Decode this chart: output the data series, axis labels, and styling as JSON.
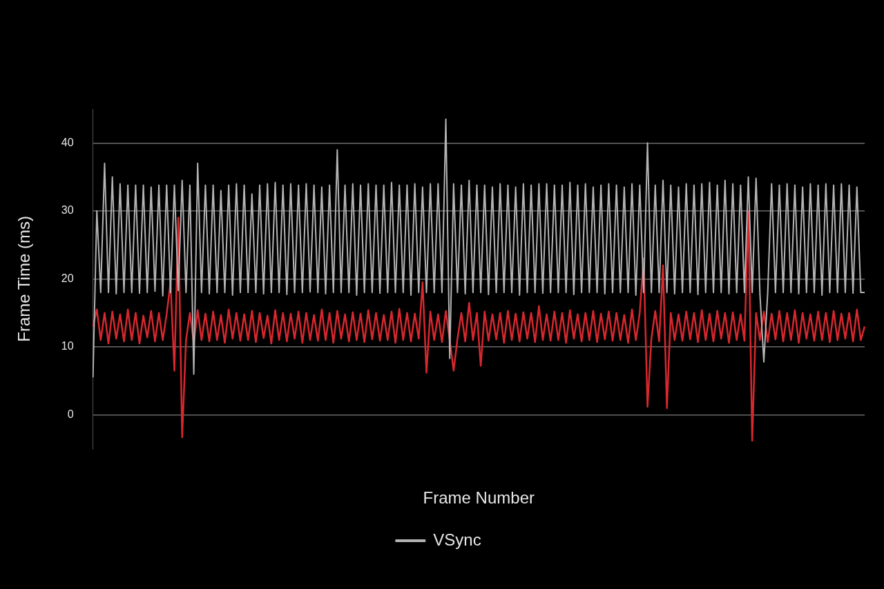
{
  "chart_data": {
    "type": "line",
    "xlabel": "Frame Number",
    "ylabel": "Frame Time (ms)",
    "ylim": [
      -5,
      45
    ],
    "yticks": [
      0,
      10,
      20,
      30,
      40
    ],
    "grid": "y",
    "legend": "bottom",
    "marker": "none",
    "line_style": "solid",
    "categories": [
      null,
      null,
      null,
      null,
      null,
      null,
      null,
      null,
      null,
      null,
      null,
      null,
      null,
      null,
      null,
      null,
      null,
      null,
      null,
      null,
      null,
      null,
      null,
      null,
      null,
      null,
      null,
      null,
      null,
      null,
      null,
      null,
      null,
      null,
      null,
      null,
      null,
      null,
      null,
      null,
      null,
      null,
      null,
      null,
      null,
      null,
      null,
      null,
      null,
      null,
      null,
      null,
      null,
      null,
      null,
      null,
      null,
      null,
      null,
      null,
      null,
      null,
      null,
      null,
      null,
      null,
      null,
      null,
      null,
      null,
      null,
      null,
      null,
      null,
      null,
      null,
      null,
      null,
      null,
      null,
      null,
      null,
      null,
      null,
      null,
      null,
      null,
      null,
      null,
      null,
      null,
      null,
      null,
      null,
      null,
      null,
      null,
      null,
      null,
      null,
      null,
      null,
      null,
      null,
      null,
      null,
      null,
      null,
      null,
      null,
      null,
      null,
      null,
      null,
      null,
      null,
      null,
      null,
      null,
      null,
      null,
      null,
      null,
      null,
      null,
      null,
      null,
      null,
      null,
      null,
      null,
      null,
      null,
      null,
      null,
      null,
      null,
      null,
      null,
      null,
      null,
      null,
      null,
      null,
      null,
      null,
      null,
      null,
      null,
      null,
      null,
      null,
      null,
      null,
      null,
      null,
      null,
      null,
      null,
      null,
      null,
      null,
      null,
      null,
      null,
      null,
      null,
      null,
      null,
      null,
      null,
      null,
      null,
      null,
      null,
      null,
      null,
      null,
      null,
      null,
      null,
      null,
      null,
      null,
      null,
      null,
      null,
      null,
      null,
      null,
      null,
      null,
      null,
      null,
      null,
      null,
      null,
      null,
      null,
      null
    ],
    "series": [
      {
        "name": "VSync",
        "color": "#b4b4b4",
        "values": [
          5.5,
          30,
          18,
          37,
          18,
          35,
          17.8,
          34,
          18,
          33.8,
          18,
          33.8,
          17.9,
          33.8,
          18,
          33.5,
          18.2,
          33.8,
          17.5,
          33.8,
          18,
          33.8,
          18.3,
          34.5,
          18,
          33.8,
          6,
          37,
          18,
          33.8,
          17.8,
          33.8,
          18,
          33,
          18,
          33.8,
          17.6,
          34,
          18,
          33.8,
          18,
          32.5,
          18,
          33.8,
          17.8,
          34,
          18,
          34.2,
          18,
          33.8,
          17.7,
          34,
          18,
          33.8,
          18,
          34,
          18.1,
          33.8,
          18,
          33.5,
          17.8,
          33.8,
          18,
          39,
          18,
          33.8,
          18,
          34,
          17.6,
          33.8,
          18,
          34,
          18,
          33.8,
          17.9,
          33.8,
          18,
          34.2,
          18,
          33.8,
          18,
          33.8,
          17.6,
          34,
          18,
          33.5,
          18,
          34,
          18,
          34,
          18,
          43.5,
          8.3,
          34,
          18,
          33.8,
          17.8,
          34.5,
          18,
          33.8,
          18,
          33.8,
          17.7,
          33.5,
          18,
          34,
          18,
          33.8,
          18,
          33.5,
          17.6,
          34,
          18,
          33.8,
          18,
          34,
          17.9,
          34,
          18,
          33.8,
          18,
          33.8,
          18,
          34.2,
          17.7,
          33.8,
          18,
          34,
          18,
          33.5,
          18,
          33.8,
          17.8,
          34,
          18,
          33.8,
          18,
          33.5,
          18,
          34,
          17.6,
          33.8,
          18,
          40,
          18,
          33.8,
          18,
          34.5,
          18,
          33.8,
          17.8,
          33.5,
          18,
          34,
          18,
          33.8,
          17.7,
          34,
          18,
          34.2,
          18,
          33.8,
          18,
          34.5,
          17.8,
          34,
          18,
          33.8,
          18,
          35,
          18,
          34.8,
          17.7,
          7.8,
          18,
          34,
          18,
          33.8,
          18,
          34,
          18,
          33.8,
          17.8,
          33.5,
          18,
          34,
          18,
          33.8,
          17.6,
          34,
          18,
          33.8,
          18,
          34,
          18,
          33.8,
          17.9,
          33.5,
          18,
          18
        ]
      },
      {
        "color": "#d7282f",
        "values": [
          13,
          15.5,
          11,
          15,
          10.5,
          15.2,
          11.2,
          14.8,
          10.8,
          15.5,
          11,
          15,
          10.5,
          14.6,
          11.4,
          15.3,
          10.8,
          15,
          11,
          14.8,
          19.5,
          6.5,
          29,
          -3.3,
          11,
          15,
          10.6,
          15.4,
          11,
          14.9,
          10.8,
          15.2,
          11,
          14.7,
          10.6,
          15.5,
          11.2,
          15,
          10.9,
          14.8,
          11,
          15.3,
          10.7,
          15,
          11.3,
          14.6,
          10.5,
          15.4,
          11,
          15,
          10.8,
          14.9,
          11.2,
          15.2,
          10.6,
          15,
          11,
          14.7,
          10.9,
          15.5,
          11,
          15,
          10.6,
          15.3,
          11.2,
          14.8,
          10.8,
          15.1,
          11,
          14.9,
          10.7,
          15.4,
          11.1,
          15,
          10.9,
          14.7,
          11,
          15.2,
          10.6,
          15.6,
          11,
          15,
          10.8,
          14.9,
          11.2,
          19.5,
          6.2,
          15.2,
          11,
          14.8,
          10.7,
          15.3,
          11,
          6.5,
          11.2,
          15,
          10.8,
          16.5,
          11,
          15,
          7.2,
          15.2,
          10.9,
          14.8,
          11.1,
          15,
          10.6,
          15.3,
          11,
          14.9,
          10.8,
          15.1,
          11.2,
          15,
          10.7,
          16,
          11,
          14.8,
          10.9,
          15.2,
          11,
          15,
          10.6,
          15.4,
          11.2,
          14.8,
          10.8,
          15,
          11,
          15.3,
          10.7,
          14.9,
          11.1,
          15.2,
          10.9,
          15,
          11,
          14.7,
          10.6,
          15.5,
          11,
          15,
          23,
          1.2,
          11.2,
          15.3,
          10.8,
          22,
          1,
          15,
          11,
          14.8,
          10.9,
          15.2,
          11.1,
          15,
          10.7,
          15.4,
          11,
          14.9,
          10.8,
          15.3,
          11.2,
          15,
          10.6,
          15.1,
          11,
          14.8,
          10.9,
          30,
          -3.8,
          15,
          11,
          15.2,
          10.7,
          14.9,
          11.1,
          15.3,
          10.8,
          15,
          11,
          15.4,
          10.6,
          15,
          11.2,
          14.8,
          10.9,
          15.2,
          11,
          15,
          10.7,
          15.3,
          11,
          14.9,
          11.2,
          15,
          10.8,
          15.5,
          11,
          13
        ]
      }
    ]
  }
}
